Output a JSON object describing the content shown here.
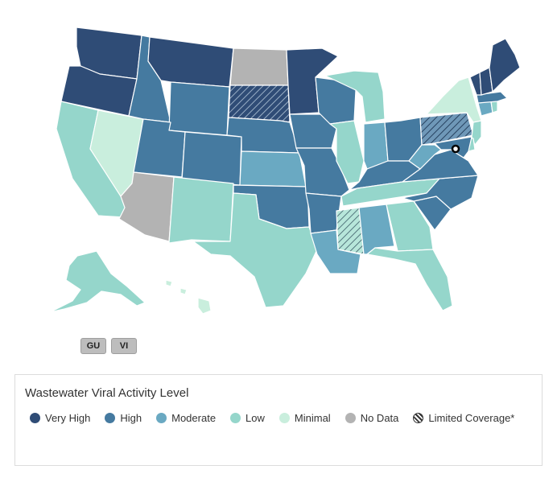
{
  "colors": {
    "very_high": "#2f4c76",
    "high": "#457aa0",
    "moderate": "#6aa9c2",
    "low": "#95d6cb",
    "minimal": "#c9eedd",
    "no_data": "#b3b3b3",
    "hatch": "#2b3a4a"
  },
  "states": [
    {
      "abbr": "WA",
      "level": "very_high"
    },
    {
      "abbr": "OR",
      "level": "very_high"
    },
    {
      "abbr": "CA",
      "level": "low"
    },
    {
      "abbr": "NV",
      "level": "minimal"
    },
    {
      "abbr": "ID",
      "level": "high"
    },
    {
      "abbr": "MT",
      "level": "very_high"
    },
    {
      "abbr": "WY",
      "level": "high"
    },
    {
      "abbr": "UT",
      "level": "high"
    },
    {
      "abbr": "AZ",
      "level": "no_data"
    },
    {
      "abbr": "CO",
      "level": "high"
    },
    {
      "abbr": "NM",
      "level": "low"
    },
    {
      "abbr": "ND",
      "level": "no_data"
    },
    {
      "abbr": "SD",
      "level": "very_high",
      "limited": true
    },
    {
      "abbr": "NE",
      "level": "high"
    },
    {
      "abbr": "KS",
      "level": "moderate"
    },
    {
      "abbr": "OK",
      "level": "high"
    },
    {
      "abbr": "TX",
      "level": "low"
    },
    {
      "abbr": "MN",
      "level": "very_high"
    },
    {
      "abbr": "IA",
      "level": "high"
    },
    {
      "abbr": "MO",
      "level": "high"
    },
    {
      "abbr": "AR",
      "level": "high"
    },
    {
      "abbr": "LA",
      "level": "moderate"
    },
    {
      "abbr": "WI",
      "level": "high"
    },
    {
      "abbr": "IL",
      "level": "low"
    },
    {
      "abbr": "MI",
      "level": "low"
    },
    {
      "abbr": "IN",
      "level": "moderate"
    },
    {
      "abbr": "OH",
      "level": "high"
    },
    {
      "abbr": "KY",
      "level": "high"
    },
    {
      "abbr": "TN",
      "level": "low"
    },
    {
      "abbr": "MS",
      "level": "low",
      "limited": true
    },
    {
      "abbr": "AL",
      "level": "moderate"
    },
    {
      "abbr": "GA",
      "level": "low"
    },
    {
      "abbr": "FL",
      "level": "low"
    },
    {
      "abbr": "SC",
      "level": "high"
    },
    {
      "abbr": "NC",
      "level": "high"
    },
    {
      "abbr": "VA",
      "level": "high"
    },
    {
      "abbr": "WV",
      "level": "moderate"
    },
    {
      "abbr": "PA",
      "level": "high",
      "limited": true
    },
    {
      "abbr": "NY",
      "level": "minimal"
    },
    {
      "abbr": "NJ",
      "level": "low"
    },
    {
      "abbr": "DE",
      "level": "low"
    },
    {
      "abbr": "MD",
      "level": "high"
    },
    {
      "abbr": "CT",
      "level": "moderate"
    },
    {
      "abbr": "RI",
      "level": "low"
    },
    {
      "abbr": "MA",
      "level": "high"
    },
    {
      "abbr": "VT",
      "level": "very_high"
    },
    {
      "abbr": "NH",
      "level": "very_high"
    },
    {
      "abbr": "ME",
      "level": "very_high"
    },
    {
      "abbr": "AK",
      "level": "low"
    },
    {
      "abbr": "HI",
      "level": "minimal"
    },
    {
      "abbr": "DC",
      "level": "minimal"
    }
  ],
  "territories": [
    {
      "label": "GU"
    },
    {
      "label": "VI"
    }
  ],
  "legend": {
    "title": "Wastewater Viral Activity Level",
    "items": [
      {
        "label": "Very High",
        "level": "very_high"
      },
      {
        "label": "High",
        "level": "high"
      },
      {
        "label": "Moderate",
        "level": "moderate"
      },
      {
        "label": "Low",
        "level": "low"
      },
      {
        "label": "Minimal",
        "level": "minimal"
      },
      {
        "label": "No Data",
        "level": "no_data"
      },
      {
        "label": "Limited Coverage*",
        "level": "hatch"
      }
    ]
  }
}
